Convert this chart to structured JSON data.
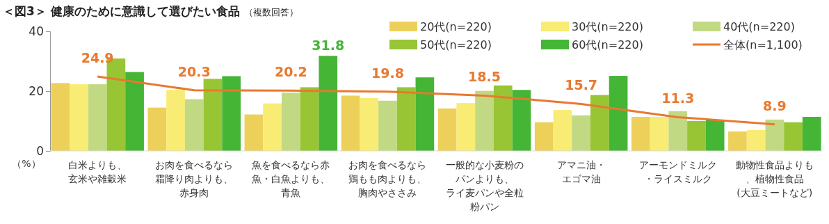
{
  "chart_data": {
    "type": "bar",
    "title": "＜図3＞ 健康のために意識して選びたい食品",
    "subtitle": "（複数回答）",
    "ylabel": "（%）",
    "categories": [
      "白米よりも、玄米や雑穀米",
      "お肉を食べるなら霜降り肉よりも、赤身肉",
      "魚を食べるなら赤魚・白魚よりも、青魚",
      "お肉を食べるなら鶏もも肉よりも、胸肉やささみ",
      "一般的な小麦粉のパンよりも、ライ麦パンや全粒粉パン",
      "アマニ油・エゴマ油",
      "アーモンドミルク・ライスミルク",
      "動物性食品よりも、植物性食品(大豆ミートなど)"
    ],
    "series": [
      {
        "name": "20代(n=220)",
        "color": "#edd05a",
        "values": [
          22.7,
          14.5,
          12.2,
          18.5,
          14.2,
          9.6,
          11.4,
          6.5
        ]
      },
      {
        "name": "30代(n=220)",
        "color": "#f8ec74",
        "values": [
          22.3,
          20.4,
          15.9,
          17.7,
          16.0,
          13.7,
          11.4,
          7.0
        ]
      },
      {
        "name": "40代(n=220)",
        "color": "#c2d984",
        "values": [
          22.3,
          17.3,
          19.5,
          16.8,
          20.1,
          11.9,
          13.3,
          10.5
        ]
      },
      {
        "name": "50代(n=220)",
        "color": "#97c534",
        "values": [
          30.9,
          24.1,
          21.3,
          21.3,
          21.9,
          18.7,
          10.0,
          9.6
        ]
      },
      {
        "name": "60代(n=220)",
        "color": "#45b535",
        "values": [
          26.4,
          25.0,
          31.8,
          24.6,
          20.4,
          25.1,
          10.4,
          11.4
        ],
        "value_labels": [
          null,
          null,
          "31.8",
          null,
          null,
          null,
          null,
          null
        ]
      },
      {
        "name": "全体(n=1,100)",
        "type": "line",
        "color": "#e8792f",
        "values": [
          24.9,
          20.3,
          20.2,
          19.8,
          18.5,
          15.7,
          11.3,
          8.9
        ],
        "value_labels": [
          "24.9",
          "20.3",
          "20.2",
          "19.8",
          "18.5",
          "15.7",
          "11.3",
          "8.9"
        ]
      }
    ],
    "ylim": [
      0,
      40
    ],
    "yticks": [
      0,
      20,
      40
    ],
    "grid": false,
    "legend": "top right",
    "marker": "none"
  }
}
